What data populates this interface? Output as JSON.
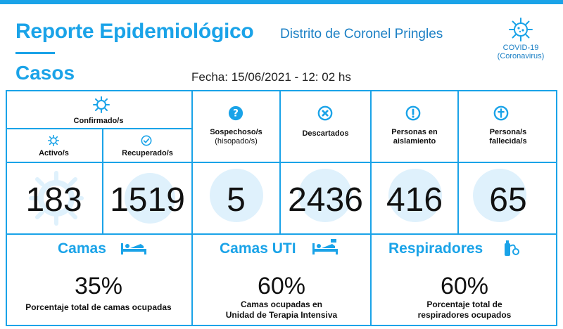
{
  "header": {
    "title": "Reporte Epidemiológico",
    "subtitle": "Distrito de Coronel Pringles",
    "covid_title": "COVID-19",
    "covid_sub": "(Coronavirus)"
  },
  "casos": {
    "label": "Casos",
    "fecha": "Fecha: 15/06/2021 - 12: 02 hs"
  },
  "stats": {
    "confirmados_label": "Confirmado/s",
    "activos_label": "Activo/s",
    "activos_value": "183",
    "recuperados_label": "Recuperado/s",
    "recuperados_value": "1519",
    "sospechosos_label_1": "Sospechoso/s",
    "sospechosos_label_2": "(hisopado/s)",
    "sospechosos_value": "5",
    "descartados_label": "Descartados",
    "descartados_value": "2436",
    "aislamiento_label_1": "Personas en",
    "aislamiento_label_2": "aislamiento",
    "aislamiento_value": "416",
    "fallecidos_label_1": "Persona/s",
    "fallecidos_label_2": "fallecida/s",
    "fallecidos_value": "65"
  },
  "recursos": {
    "camas_title": "Camas",
    "camas_pct": "35%",
    "camas_desc": "Porcentaje total de camas ocupadas",
    "uti_title": "Camas UTI",
    "uti_pct": "60%",
    "uti_desc_1": "Camas ocupadas en",
    "uti_desc_2": "Unidad de Terapia Intensiva",
    "resp_title": "Respiradores",
    "resp_pct": "60%",
    "resp_desc_1": "Porcentaje total de",
    "resp_desc_2": "respiradores ocupados"
  },
  "colors": {
    "accent": "#1aa3e8",
    "accent_dark": "#1a7fc4",
    "light_circle": "#dff1fc"
  },
  "icons": [
    "virus-icon",
    "check-circle-icon",
    "question-icon",
    "x-circle-icon",
    "exclamation-icon",
    "cross-icon",
    "bed-icon",
    "icu-bed-icon",
    "respirator-icon"
  ]
}
